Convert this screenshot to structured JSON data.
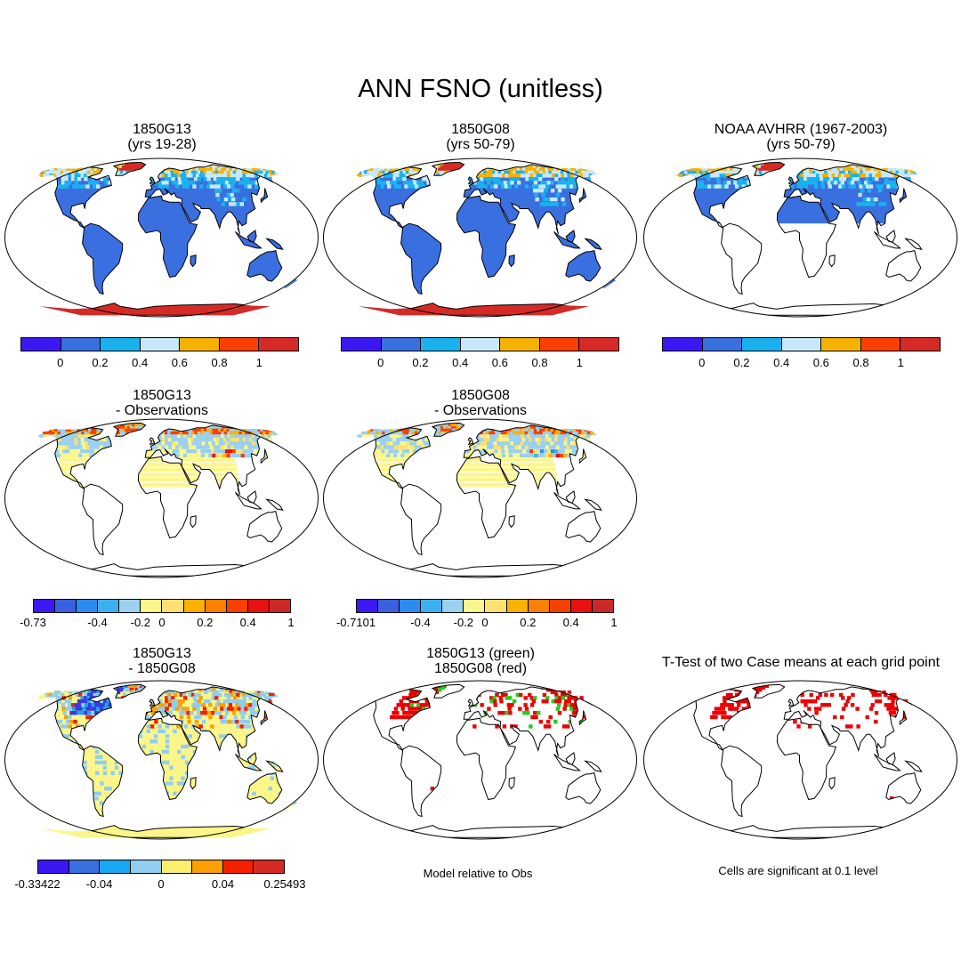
{
  "title": "ANN FSNO (unitless)",
  "panels": [
    {
      "id": "p1",
      "title1": "1850G13",
      "title2": "(yrs 19-28)",
      "style": "clim",
      "antarctica": true,
      "south_fill": true
    },
    {
      "id": "p2",
      "title1": "1850G08",
      "title2": "(yrs 50-79)",
      "style": "clim",
      "antarctica": true,
      "south_fill": true
    },
    {
      "id": "p3",
      "title1": "NOAA AVHRR (1967-2003)",
      "title2": "(yrs 50-79)",
      "style": "clim",
      "antarctica": false,
      "south_fill": false
    },
    {
      "id": "p4",
      "title1": "1850G13",
      "title2": "- Observations",
      "style": "diff",
      "antarctica": false,
      "south_fill": false
    },
    {
      "id": "p5",
      "title1": "1850G08",
      "title2": "- Observations",
      "style": "diff",
      "antarctica": false,
      "south_fill": false
    },
    {
      "id": "p6",
      "title1": "1850G13",
      "title2": "- 1850G08",
      "style": "casediff",
      "antarctica": true,
      "south_fill": true
    },
    {
      "id": "p7",
      "title1": "1850G13 (green)",
      "title2": "1850G08 (red)",
      "style": "sig2",
      "antarctica": false,
      "south_fill": false
    },
    {
      "id": "p8",
      "title1": "T-Test of two Case means at each grid point",
      "title2": "",
      "style": "ttest",
      "antarctica": false,
      "south_fill": false
    }
  ],
  "colorbars": [
    {
      "id": "cb1",
      "colors": [
        "#3b18f2",
        "#3a6fe0",
        "#19b2ef",
        "#c6e8f8",
        "#f7b200",
        "#fd4000",
        "#d62a27"
      ],
      "labels": [
        "0",
        "0.2",
        "0.4",
        "0.6",
        "0.8",
        "1"
      ]
    },
    {
      "id": "cb2",
      "colors": [
        "#3b18f2",
        "#3a6fe0",
        "#19b2ef",
        "#c6e8f8",
        "#f7b200",
        "#fd4000",
        "#d62a27"
      ],
      "labels": [
        "0",
        "0.2",
        "0.4",
        "0.6",
        "0.8",
        "1"
      ]
    },
    {
      "id": "cb3",
      "colors": [
        "#3b18f2",
        "#3a6fe0",
        "#19b2ef",
        "#c6e8f8",
        "#f7b200",
        "#fd4000",
        "#d62a27"
      ],
      "labels": [
        "0",
        "0.2",
        "0.4",
        "0.6",
        "0.8",
        "1"
      ]
    },
    {
      "id": "cb4",
      "colors": [
        "#3b18f2",
        "#3a5fe0",
        "#2a8cf0",
        "#3bb0f0",
        "#9ad0f0",
        "#fcf68a",
        "#fde070",
        "#fcb000",
        "#fd8000",
        "#f84000",
        "#e81010",
        "#c82828"
      ],
      "labels": [
        "-0.73",
        "-0.4",
        "-0.2",
        "0",
        "0.2",
        "0.4",
        "1"
      ]
    },
    {
      "id": "cb5",
      "colors": [
        "#3b18f2",
        "#3a5fe0",
        "#2a8cf0",
        "#3bb0f0",
        "#9ad0f0",
        "#fcf68a",
        "#fde070",
        "#fcb000",
        "#fd8000",
        "#f84000",
        "#e81010",
        "#c82828"
      ],
      "labels": [
        "-0.7101",
        "-0.4",
        "-0.2",
        "0",
        "0.2",
        "0.4",
        "1"
      ]
    },
    {
      "id": "cb6",
      "colors": [
        "#3b18f2",
        "#3a6fe0",
        "#19a8f0",
        "#90cef0",
        "#fcee6e",
        "#fca000",
        "#f42000",
        "#d62a27"
      ],
      "labels": [
        "-0.33422",
        "-0.04",
        "0",
        "0.04",
        "0.25493"
      ]
    }
  ],
  "notes": {
    "model_relative": "Model relative to Obs",
    "significance": "Cells are significant at 0.1 level"
  },
  "colors": {
    "land_base": "#3a6fe0",
    "arctic": "#d62a27",
    "orange": "#f7b200",
    "light_blue": "#c6e8f8",
    "cyan": "#19b2ef",
    "diff_yellow": "#fcf68a",
    "diff_lightblue": "#9ad0f0",
    "sig_red": "#ee0000",
    "sig_green": "#22cc22"
  }
}
